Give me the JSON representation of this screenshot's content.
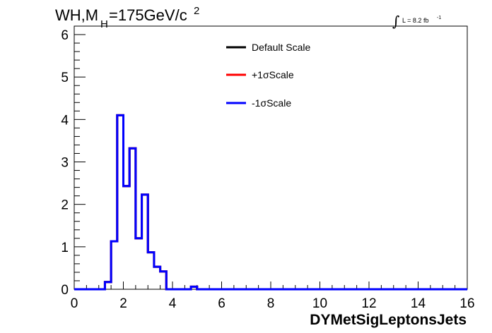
{
  "header": {
    "title_prefix": "WH,M",
    "title_sub": "H",
    "title_value": "=175GeV/c",
    "title_sup": "2",
    "lumi_integral": "∫",
    "lumi_text": "L = 8.2 fb",
    "lumi_sup": "-1"
  },
  "legend": {
    "entries": [
      {
        "label": "Default Scale",
        "color": "#000000"
      },
      {
        "label": "+1σScale",
        "color": "#ff0000"
      },
      {
        "label": "-1σScale",
        "color": "#0000ff"
      }
    ]
  },
  "chart_data": {
    "type": "histogram",
    "title": "WH,MH=175GeV/c2",
    "xlabel": "DYMetSigLeptonsJets",
    "ylabel": "",
    "xlim": [
      0,
      16
    ],
    "ylim": [
      0,
      6.2
    ],
    "x_ticks": [
      "0",
      "2",
      "4",
      "6",
      "8",
      "10",
      "12",
      "14",
      "16"
    ],
    "y_ticks": [
      "0",
      "1",
      "2",
      "3",
      "4",
      "5",
      "6"
    ],
    "bin_edges": [
      0,
      0.5,
      1.0,
      1.25,
      1.5,
      1.75,
      2.0,
      2.25,
      2.5,
      2.75,
      3.0,
      3.25,
      3.5,
      3.75,
      4.0,
      4.25,
      4.5,
      4.75,
      5.0,
      5.25,
      5.5,
      16
    ],
    "series": [
      {
        "name": "Default Scale",
        "color": "#000000",
        "values": [
          0,
          0,
          0,
          0.17,
          1.13,
          4.1,
          2.43,
          3.32,
          1.2,
          2.23,
          0.87,
          0.53,
          0.42,
          0,
          0,
          0,
          0,
          0.06,
          0,
          0,
          0
        ]
      },
      {
        "name": "+1σScale",
        "color": "#ff0000",
        "values": [
          0,
          0,
          0,
          0.17,
          1.13,
          4.1,
          2.43,
          3.32,
          1.2,
          2.23,
          0.87,
          0.53,
          0.42,
          0,
          0,
          0,
          0,
          0.06,
          0,
          0,
          0
        ]
      },
      {
        "name": "-1σScale",
        "color": "#0000ff",
        "values": [
          0,
          0,
          0,
          0.17,
          1.13,
          4.1,
          2.43,
          3.32,
          1.2,
          2.23,
          0.87,
          0.53,
          0.42,
          0,
          0,
          0,
          0,
          0.06,
          0,
          0,
          0
        ]
      }
    ],
    "grid": false,
    "legend_position": "top-center"
  }
}
